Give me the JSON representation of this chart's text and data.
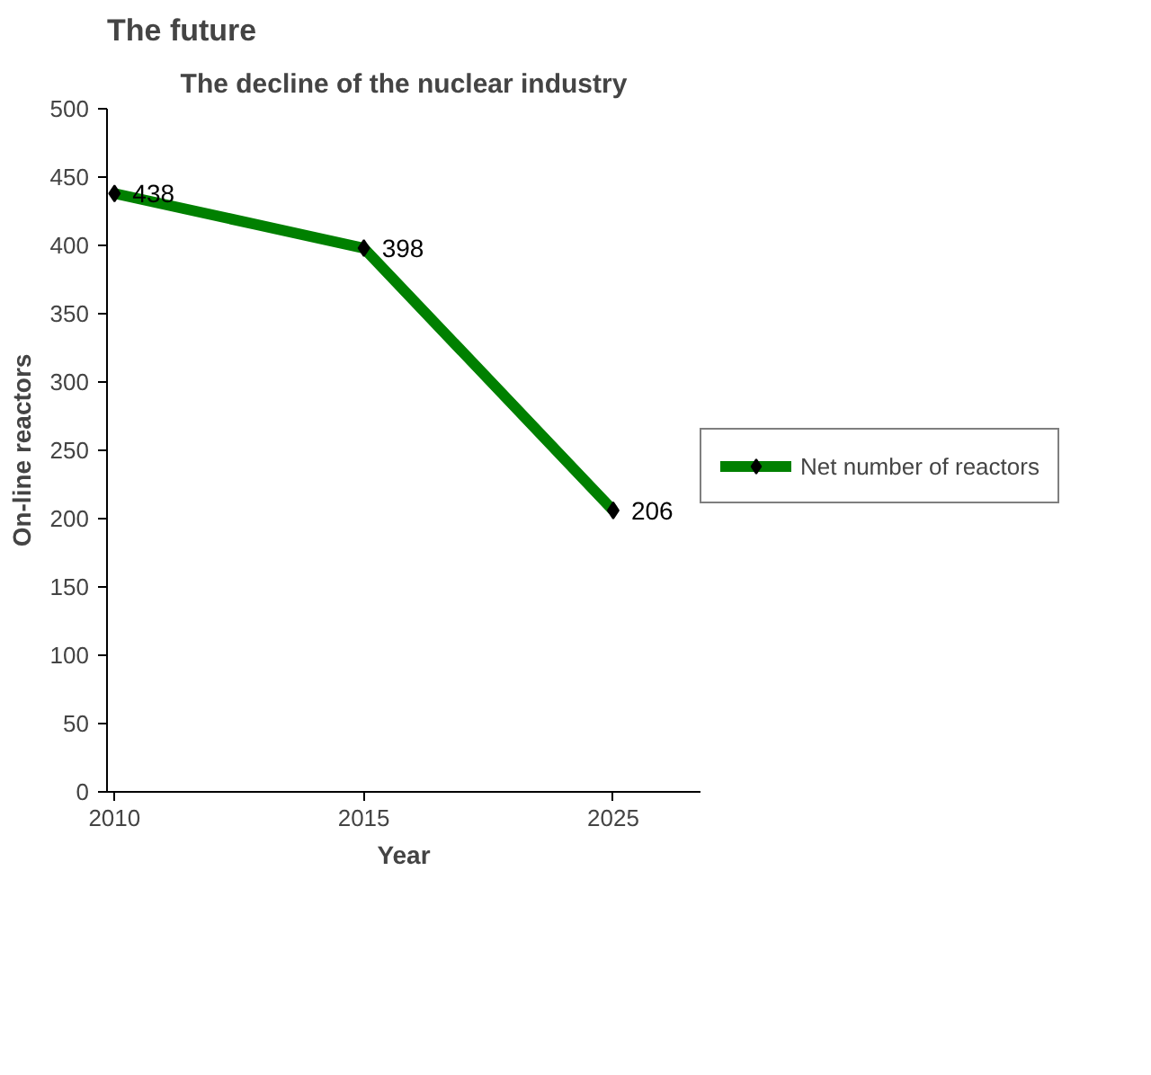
{
  "chart_data": {
    "type": "line",
    "title": "The decline of the nuclear industry",
    "annotations": [
      "The future"
    ],
    "xlabel": "Year",
    "ylabel": "On-line reactors",
    "categories": [
      "2010",
      "2015",
      "2025"
    ],
    "series": [
      {
        "name": "Net number of reactors",
        "color": "#008000",
        "values": [
          438,
          398,
          206
        ]
      }
    ],
    "ylim": [
      0,
      500
    ],
    "yticks": [
      0,
      50,
      100,
      150,
      200,
      250,
      300,
      350,
      400,
      450,
      500
    ],
    "grid": false,
    "legend": "right",
    "marker": "diamond",
    "line_style": "solid",
    "data_labels": true
  }
}
